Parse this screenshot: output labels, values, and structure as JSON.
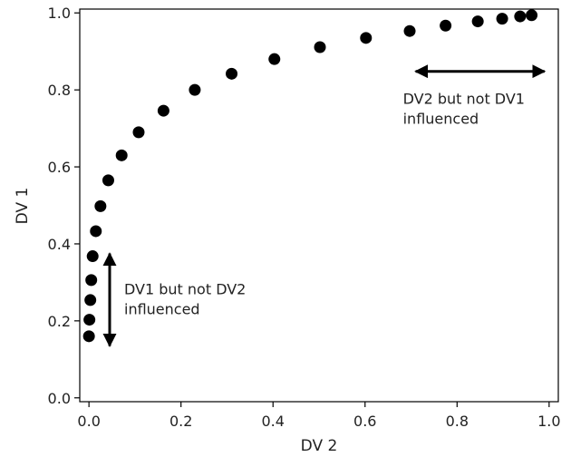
{
  "chart_data": {
    "type": "scatter",
    "title": "",
    "xlabel": "DV 2",
    "ylabel": "DV 1",
    "xlim": [
      -0.02,
      1.02
    ],
    "ylim": [
      -0.01,
      1.01
    ],
    "xticks": [
      0.0,
      0.2,
      0.4,
      0.6,
      0.8,
      1.0
    ],
    "xtick_labels": [
      "0.0",
      "0.2",
      "0.4",
      "0.6",
      "0.8",
      "1.0"
    ],
    "yticks": [
      0.0,
      0.2,
      0.4,
      0.6,
      0.8,
      1.0
    ],
    "ytick_labels": [
      "0.0",
      "0.2",
      "0.4",
      "0.6",
      "0.8",
      "1.0"
    ],
    "grid": false,
    "series": [
      {
        "points": [
          {
            "x": 0.0,
            "y": 0.16
          },
          {
            "x": 0.001,
            "y": 0.203
          },
          {
            "x": 0.003,
            "y": 0.254
          },
          {
            "x": 0.005,
            "y": 0.306
          },
          {
            "x": 0.008,
            "y": 0.368
          },
          {
            "x": 0.015,
            "y": 0.433
          },
          {
            "x": 0.025,
            "y": 0.498
          },
          {
            "x": 0.042,
            "y": 0.565
          },
          {
            "x": 0.071,
            "y": 0.63
          },
          {
            "x": 0.108,
            "y": 0.69
          },
          {
            "x": 0.162,
            "y": 0.746
          },
          {
            "x": 0.23,
            "y": 0.8
          },
          {
            "x": 0.31,
            "y": 0.842
          },
          {
            "x": 0.403,
            "y": 0.88
          },
          {
            "x": 0.502,
            "y": 0.911
          },
          {
            "x": 0.602,
            "y": 0.935
          },
          {
            "x": 0.697,
            "y": 0.953
          },
          {
            "x": 0.775,
            "y": 0.967
          },
          {
            "x": 0.845,
            "y": 0.978
          },
          {
            "x": 0.898,
            "y": 0.985
          },
          {
            "x": 0.937,
            "y": 0.991
          },
          {
            "x": 0.962,
            "y": 0.994
          }
        ]
      }
    ],
    "annotations": [
      {
        "text_lines": [
          "DV2 but not DV1",
          "influenced"
        ],
        "arrow": {
          "direction": "horizontal",
          "x_from": 0.71,
          "x_to": 0.99,
          "y": 0.9
        }
      },
      {
        "text_lines": [
          "DV1 but not DV2",
          "influenced"
        ],
        "arrow": {
          "direction": "vertical",
          "x": 0.045,
          "y_from": 0.375,
          "y_to": 0.135
        }
      }
    ]
  }
}
